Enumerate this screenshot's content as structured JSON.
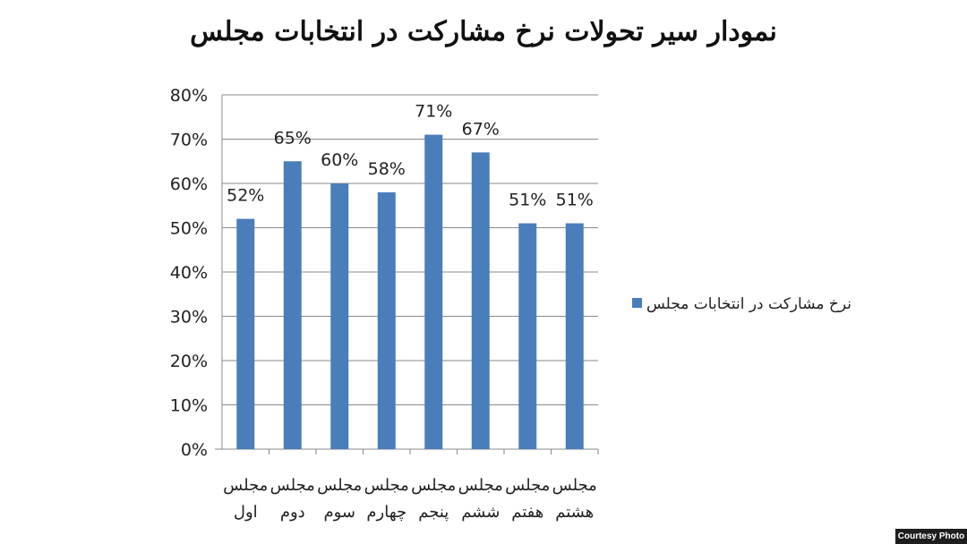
{
  "chart_data": {
    "type": "bar",
    "title": "نمودار سیر تحولات نرخ مشارکت در انتخابات مجلس",
    "xlabel": "",
    "ylabel": "",
    "ylim": [
      0,
      80
    ],
    "yticks": [
      "0%",
      "10%",
      "20%",
      "30%",
      "40%",
      "50%",
      "60%",
      "70%",
      "80%"
    ],
    "grid": true,
    "legend_position": "right",
    "categories": [
      [
        "مجلس",
        "اول"
      ],
      [
        "مجلس",
        "دوم"
      ],
      [
        "مجلس",
        "سوم"
      ],
      [
        "مجلس",
        "چهارم"
      ],
      [
        "مجلس",
        "پنجم"
      ],
      [
        "مجلس",
        "ششم"
      ],
      [
        "مجلس",
        "هفتم"
      ],
      [
        "مجلس",
        "هشتم"
      ]
    ],
    "series": [
      {
        "name": "نرخ مشارکت در انتخابات مجلس",
        "color": "#4a7ebb",
        "values": [
          52,
          65,
          60,
          58,
          71,
          67,
          51,
          51
        ],
        "labels": [
          "52%",
          "65%",
          "60%",
          "58%",
          "71%",
          "67%",
          "51%",
          "51%"
        ]
      }
    ]
  },
  "credit": "Courtesy Photo"
}
